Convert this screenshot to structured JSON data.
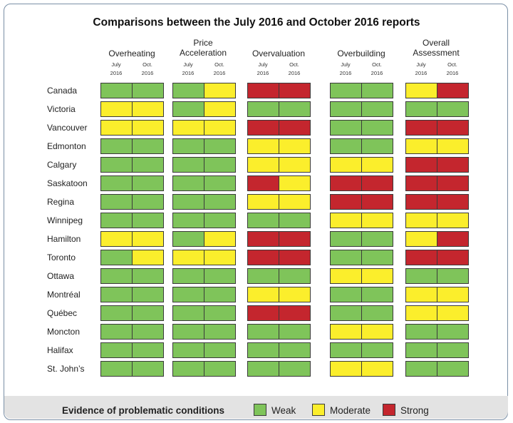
{
  "chart_data": {
    "type": "heatmap",
    "title": "Comparisons between the July 2016 and October 2016 reports",
    "categories": [
      "Overheating",
      "Price Acceleration",
      "Overvaluation",
      "Overbuilding",
      "Overall Assessment"
    ],
    "periods": [
      [
        "July",
        "2016"
      ],
      [
        "Oct.",
        "2016"
      ]
    ],
    "rows": [
      {
        "city": "Canada",
        "values": [
          "W",
          "W",
          "W",
          "M",
          "S",
          "S",
          "W",
          "W",
          "M",
          "S"
        ]
      },
      {
        "city": "Victoria",
        "values": [
          "M",
          "M",
          "W",
          "M",
          "W",
          "W",
          "W",
          "W",
          "W",
          "W"
        ]
      },
      {
        "city": "Vancouver",
        "values": [
          "M",
          "M",
          "M",
          "M",
          "S",
          "S",
          "W",
          "W",
          "S",
          "S"
        ]
      },
      {
        "city": "Edmonton",
        "values": [
          "W",
          "W",
          "W",
          "W",
          "M",
          "M",
          "W",
          "W",
          "M",
          "M"
        ]
      },
      {
        "city": "Calgary",
        "values": [
          "W",
          "W",
          "W",
          "W",
          "M",
          "M",
          "M",
          "M",
          "S",
          "S"
        ]
      },
      {
        "city": "Saskatoon",
        "values": [
          "W",
          "W",
          "W",
          "W",
          "S",
          "M",
          "S",
          "S",
          "S",
          "S"
        ]
      },
      {
        "city": "Regina",
        "values": [
          "W",
          "W",
          "W",
          "W",
          "M",
          "M",
          "S",
          "S",
          "S",
          "S"
        ]
      },
      {
        "city": "Winnipeg",
        "values": [
          "W",
          "W",
          "W",
          "W",
          "W",
          "W",
          "M",
          "M",
          "M",
          "M"
        ]
      },
      {
        "city": "Hamilton",
        "values": [
          "M",
          "M",
          "W",
          "M",
          "S",
          "S",
          "W",
          "W",
          "M",
          "S"
        ]
      },
      {
        "city": "Toronto",
        "values": [
          "W",
          "M",
          "M",
          "M",
          "S",
          "S",
          "W",
          "W",
          "S",
          "S"
        ]
      },
      {
        "city": "Ottawa",
        "values": [
          "W",
          "W",
          "W",
          "W",
          "W",
          "W",
          "M",
          "M",
          "W",
          "W"
        ]
      },
      {
        "city": "Montréal",
        "values": [
          "W",
          "W",
          "W",
          "W",
          "M",
          "M",
          "W",
          "W",
          "M",
          "M"
        ]
      },
      {
        "city": "Québec",
        "values": [
          "W",
          "W",
          "W",
          "W",
          "S",
          "S",
          "W",
          "W",
          "M",
          "M"
        ]
      },
      {
        "city": "Moncton",
        "values": [
          "W",
          "W",
          "W",
          "W",
          "W",
          "W",
          "M",
          "M",
          "W",
          "W"
        ]
      },
      {
        "city": "Halifax",
        "values": [
          "W",
          "W",
          "W",
          "W",
          "W",
          "W",
          "W",
          "W",
          "W",
          "W"
        ]
      },
      {
        "city": "St. John’s",
        "values": [
          "W",
          "W",
          "W",
          "W",
          "W",
          "W",
          "M",
          "M",
          "W",
          "W"
        ]
      }
    ],
    "levels": {
      "W": {
        "label": "Weak",
        "color": "#7fc45a"
      },
      "M": {
        "label": "Moderate",
        "color": "#fbee2c"
      },
      "S": {
        "label": "Strong",
        "color": "#c4262e"
      }
    },
    "legend_title": "Evidence of problematic conditions"
  }
}
